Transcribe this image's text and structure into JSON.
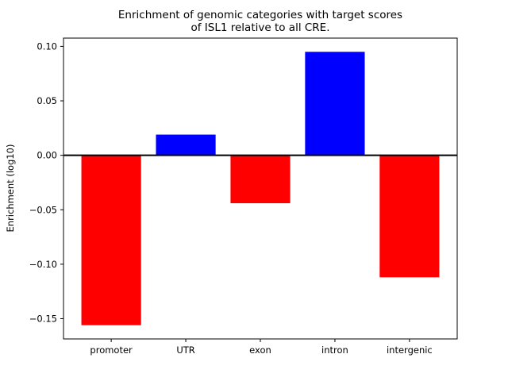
{
  "chart_data": {
    "type": "bar",
    "title": "Enrichment of genomic categories with target scores of ISL1 relative to all CRE.",
    "title_lines": [
      "Enrichment of genomic categories with target scores",
      "of ISL1 relative to all CRE."
    ],
    "categories": [
      "promoter",
      "UTR",
      "exon",
      "intron",
      "intergenic"
    ],
    "values": [
      -0.156,
      0.019,
      -0.044,
      0.095,
      -0.112
    ],
    "xlabel": "",
    "ylabel": "Enrichment (log10)",
    "ylim": [
      -0.1686,
      0.1076
    ],
    "yticks": [
      0.1,
      0.05,
      0.0,
      -0.05,
      -0.1,
      -0.15
    ],
    "grid": false,
    "legend": null,
    "positive_color": "#0000ff",
    "negative_color": "#ff0000",
    "axis_color": "#000000",
    "zero_line_color": "#000000",
    "background_color": "#ffffff"
  }
}
